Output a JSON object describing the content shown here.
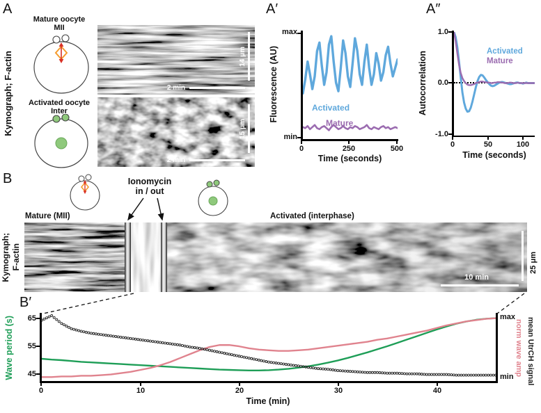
{
  "colors": {
    "blue": "#5FA8DC",
    "purple": "#9B6CB0",
    "green": "#1E9E57",
    "pink": "#E0838E",
    "orange": "#F59B2D",
    "red": "#D93025",
    "black": "#111111",
    "white": "#FFFFFF"
  },
  "panels": {
    "a": {
      "label": "A",
      "side_label": "Kymograph; F-actin",
      "diagrams": [
        {
          "title_line1": "Mature oocyte",
          "title_line2": "MII"
        },
        {
          "title_line1": "Activated oocyte",
          "title_line2": "Inter"
        }
      ],
      "kymos": [
        {
          "scale_v": "14 μm",
          "scale_h": "2 min"
        },
        {
          "scale_v": "15 μm",
          "scale_h": "2 min"
        }
      ]
    },
    "aprime": {
      "label": "A′"
    },
    "adprime": {
      "label": "A″"
    },
    "b": {
      "label": "B",
      "side_label_line1": "Kymograph;",
      "side_label_line2": "F-actin",
      "mature_label": "Mature (MII)",
      "iono_line1": "Ionomycin",
      "iono_line2": "in / out",
      "activated_label": "Activated (interphase)",
      "scale_v": "25 μm",
      "scale_h": "10 min"
    },
    "bprime": {
      "label": "B′"
    }
  },
  "chart_data": [
    {
      "id": "fluorescence",
      "type": "line",
      "xlabel": "Time (seconds)",
      "ylabel": "Fluorescence (AU)",
      "xlim": [
        0,
        500
      ],
      "ylim": [
        0,
        1
      ],
      "xticks": [
        "0",
        "250",
        "500"
      ],
      "yticks": [
        "max",
        "min"
      ],
      "grid": false,
      "legend_position": "on-curve",
      "series": [
        {
          "name": "Activated",
          "color": "#5FA8DC",
          "width": 3.4,
          "values": [
            0.42,
            0.55,
            0.72,
            0.6,
            0.46,
            0.58,
            0.82,
            0.9,
            0.68,
            0.5,
            0.62,
            0.88,
            0.96,
            0.72,
            0.52,
            0.44,
            0.66,
            0.92,
            0.8,
            0.58,
            0.48,
            0.7,
            0.94,
            0.82,
            0.6,
            0.5,
            0.72,
            0.88,
            0.66,
            0.5,
            0.6,
            0.8,
            0.7,
            0.54,
            0.62,
            0.78,
            0.86,
            0.7,
            0.58,
            0.66,
            0.74
          ]
        },
        {
          "name": "Mature",
          "color": "#9B6CB0",
          "width": 2.6,
          "values": [
            0.1,
            0.09,
            0.11,
            0.08,
            0.1,
            0.12,
            0.09,
            0.08,
            0.1,
            0.11,
            0.09,
            0.07,
            0.1,
            0.12,
            0.1,
            0.08,
            0.09,
            0.11,
            0.09,
            0.08,
            0.1,
            0.09,
            0.11,
            0.1,
            0.08,
            0.09,
            0.1,
            0.12,
            0.09,
            0.08,
            0.1,
            0.09,
            0.08,
            0.1,
            0.11,
            0.09,
            0.1,
            0.08,
            0.09,
            0.1,
            0.09
          ]
        }
      ]
    },
    {
      "id": "autocorr",
      "type": "line",
      "xlabel": "Time (seconds)",
      "ylabel": "Autocorrelation",
      "xlim": [
        0,
        120
      ],
      "ylim": [
        -1,
        1
      ],
      "xticks": [
        "0",
        "50",
        "100"
      ],
      "yticks": [
        "1.0",
        "0.0",
        "-1.0"
      ],
      "zero_line": true,
      "grid": false,
      "legend_position": "upper-right",
      "series": [
        {
          "name": "Activated",
          "color": "#5FA8DC",
          "width": 3.0,
          "values": [
            1.0,
            0.9,
            0.7,
            0.42,
            0.12,
            -0.18,
            -0.38,
            -0.5,
            -0.56,
            -0.55,
            -0.48,
            -0.36,
            -0.22,
            -0.08,
            0.04,
            0.12,
            0.16,
            0.15,
            0.11,
            0.06,
            0.02,
            -0.02,
            -0.05,
            -0.06,
            -0.05,
            -0.03,
            -0.01,
            0.01,
            0.02,
            0.02,
            0.01,
            0.0,
            -0.01,
            -0.02,
            -0.02,
            -0.01,
            0.0,
            0.01,
            0.01,
            0.0,
            0.0,
            -0.01,
            0.0,
            0.01,
            0.0,
            0.0,
            0.0,
            0.0,
            0.0
          ]
        },
        {
          "name": "Mature",
          "color": "#9B6CB0",
          "width": 2.4,
          "values": [
            1.0,
            0.82,
            0.58,
            0.36,
            0.2,
            0.1,
            0.04,
            0.0,
            -0.03,
            -0.04,
            -0.04,
            -0.03,
            -0.02,
            0.0,
            0.01,
            0.02,
            0.03,
            0.03,
            0.02,
            0.02,
            0.01,
            0.01,
            0.0,
            0.0,
            0.01,
            0.01,
            0.02,
            0.02,
            0.01,
            0.01,
            0.0,
            0.0,
            0.0,
            0.01,
            0.01,
            0.0,
            0.0,
            0.0,
            0.01,
            0.0,
            0.0,
            0.0,
            0.0,
            0.0,
            0.0,
            0.0,
            0.0,
            0.0,
            0.0
          ]
        }
      ]
    },
    {
      "id": "waves",
      "type": "line",
      "xlabel": "Time (min)",
      "ylabel_left": "Wave period (s)",
      "ylabel_right_1": "norm wave amp",
      "ylabel_right_2": "mean UtrCH signal",
      "xlim": [
        0,
        46
      ],
      "ylim_left": [
        42.5,
        66.5
      ],
      "ylim_right": [
        0,
        1.02
      ],
      "xticks": [
        "0",
        "10",
        "20",
        "30",
        "40"
      ],
      "yticks_left": [
        "65",
        "55",
        "45"
      ],
      "yticks_right": [
        "max",
        "min"
      ],
      "grid": false,
      "series": [
        {
          "name": "Wave period",
          "color": "#1E9E57",
          "width": 2.4,
          "axis": "left",
          "values": [
            50.5,
            50.2,
            50.0,
            49.7,
            49.4,
            49.2,
            49.0,
            48.8,
            48.6,
            48.4,
            48.2,
            48.0,
            47.8,
            47.6,
            47.4,
            47.2,
            47.0,
            46.8,
            46.6,
            46.5,
            46.4,
            46.3,
            46.3,
            46.4,
            46.6,
            46.9,
            47.3,
            47.8,
            48.4,
            49.1,
            49.9,
            50.8,
            51.8,
            52.8,
            53.9,
            55.0,
            56.2,
            57.4,
            58.6,
            59.8,
            61.0,
            62.1,
            63.1,
            63.9,
            64.5,
            64.9,
            65.1
          ]
        },
        {
          "name": "norm wave amp",
          "color": "#E0838E",
          "width": 2.4,
          "axis": "right",
          "values": [
            0.06,
            0.06,
            0.07,
            0.07,
            0.08,
            0.08,
            0.09,
            0.1,
            0.12,
            0.14,
            0.17,
            0.2,
            0.24,
            0.29,
            0.35,
            0.41,
            0.47,
            0.52,
            0.55,
            0.55,
            0.53,
            0.5,
            0.48,
            0.47,
            0.46,
            0.46,
            0.47,
            0.48,
            0.5,
            0.52,
            0.54,
            0.56,
            0.58,
            0.6,
            0.63,
            0.65,
            0.68,
            0.71,
            0.74,
            0.77,
            0.81,
            0.85,
            0.88,
            0.91,
            0.93,
            0.95,
            0.96
          ]
        },
        {
          "name": "mean UtrCH signal",
          "color": "#222222",
          "axis": "right",
          "marker": "circle",
          "marker_r": 1.5,
          "values": [
            0.93,
            1.0,
            0.88,
            0.8,
            0.76,
            0.73,
            0.71,
            0.69,
            0.67,
            0.65,
            0.63,
            0.61,
            0.59,
            0.57,
            0.55,
            0.52,
            0.5,
            0.47,
            0.44,
            0.41,
            0.38,
            0.35,
            0.32,
            0.29,
            0.27,
            0.25,
            0.23,
            0.21,
            0.19,
            0.18,
            0.16,
            0.15,
            0.14,
            0.13,
            0.13,
            0.12,
            0.12,
            0.11,
            0.11,
            0.1,
            0.1,
            0.1,
            0.09,
            0.09,
            0.09,
            0.09,
            0.09
          ]
        }
      ]
    }
  ]
}
